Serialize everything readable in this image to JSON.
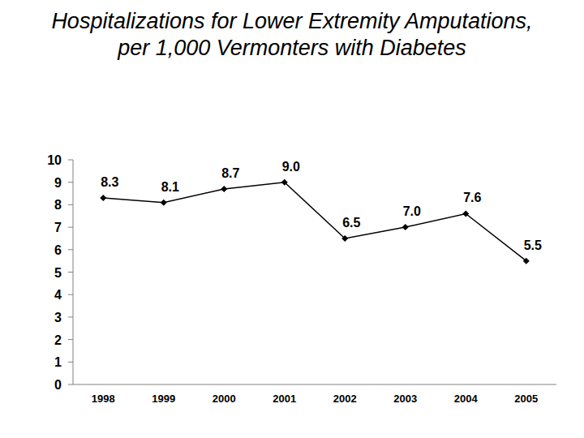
{
  "chart_data": {
    "type": "line",
    "title": "Hospitalizations for Lower Extremity Amputations,\nper 1,000 Vermonters with Diabetes",
    "categories": [
      "1998",
      "1999",
      "2000",
      "2001",
      "2002",
      "2003",
      "2004",
      "2005"
    ],
    "values": [
      8.3,
      8.1,
      8.7,
      9.0,
      6.5,
      7.0,
      7.6,
      5.5
    ],
    "value_labels": [
      "8.3",
      "8.1",
      "8.7",
      "9.0",
      "6.5",
      "7.0",
      "7.6",
      "5.5"
    ],
    "color": "#000000",
    "marker": "diamond",
    "data_labels": true,
    "grid": false,
    "ylim": [
      0,
      10
    ],
    "yticks": [
      0,
      1,
      2,
      3,
      4,
      5,
      6,
      7,
      8,
      9,
      10
    ]
  }
}
